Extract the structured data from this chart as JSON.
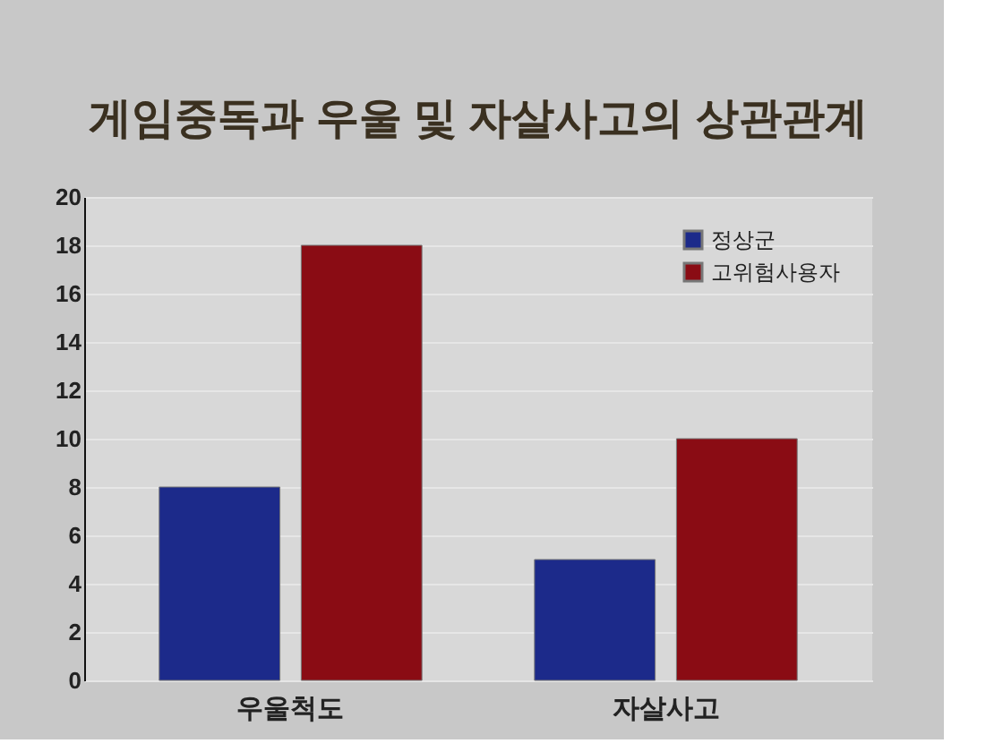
{
  "chart_data": {
    "type": "bar",
    "title": "게임중독과 우울 및 자살사고의 상관관계",
    "categories": [
      "우울척도",
      "자살사고"
    ],
    "series": [
      {
        "name": "정상군",
        "color": "#1c2a8a",
        "values": [
          8,
          5
        ]
      },
      {
        "name": "고위험사용자",
        "color": "#8a0c14",
        "values": [
          18,
          10
        ]
      }
    ],
    "ylim": [
      0,
      20
    ],
    "yticks": [
      0,
      2,
      4,
      6,
      8,
      10,
      12,
      14,
      16,
      18,
      20
    ],
    "grid": "y",
    "legend": "top right"
  }
}
